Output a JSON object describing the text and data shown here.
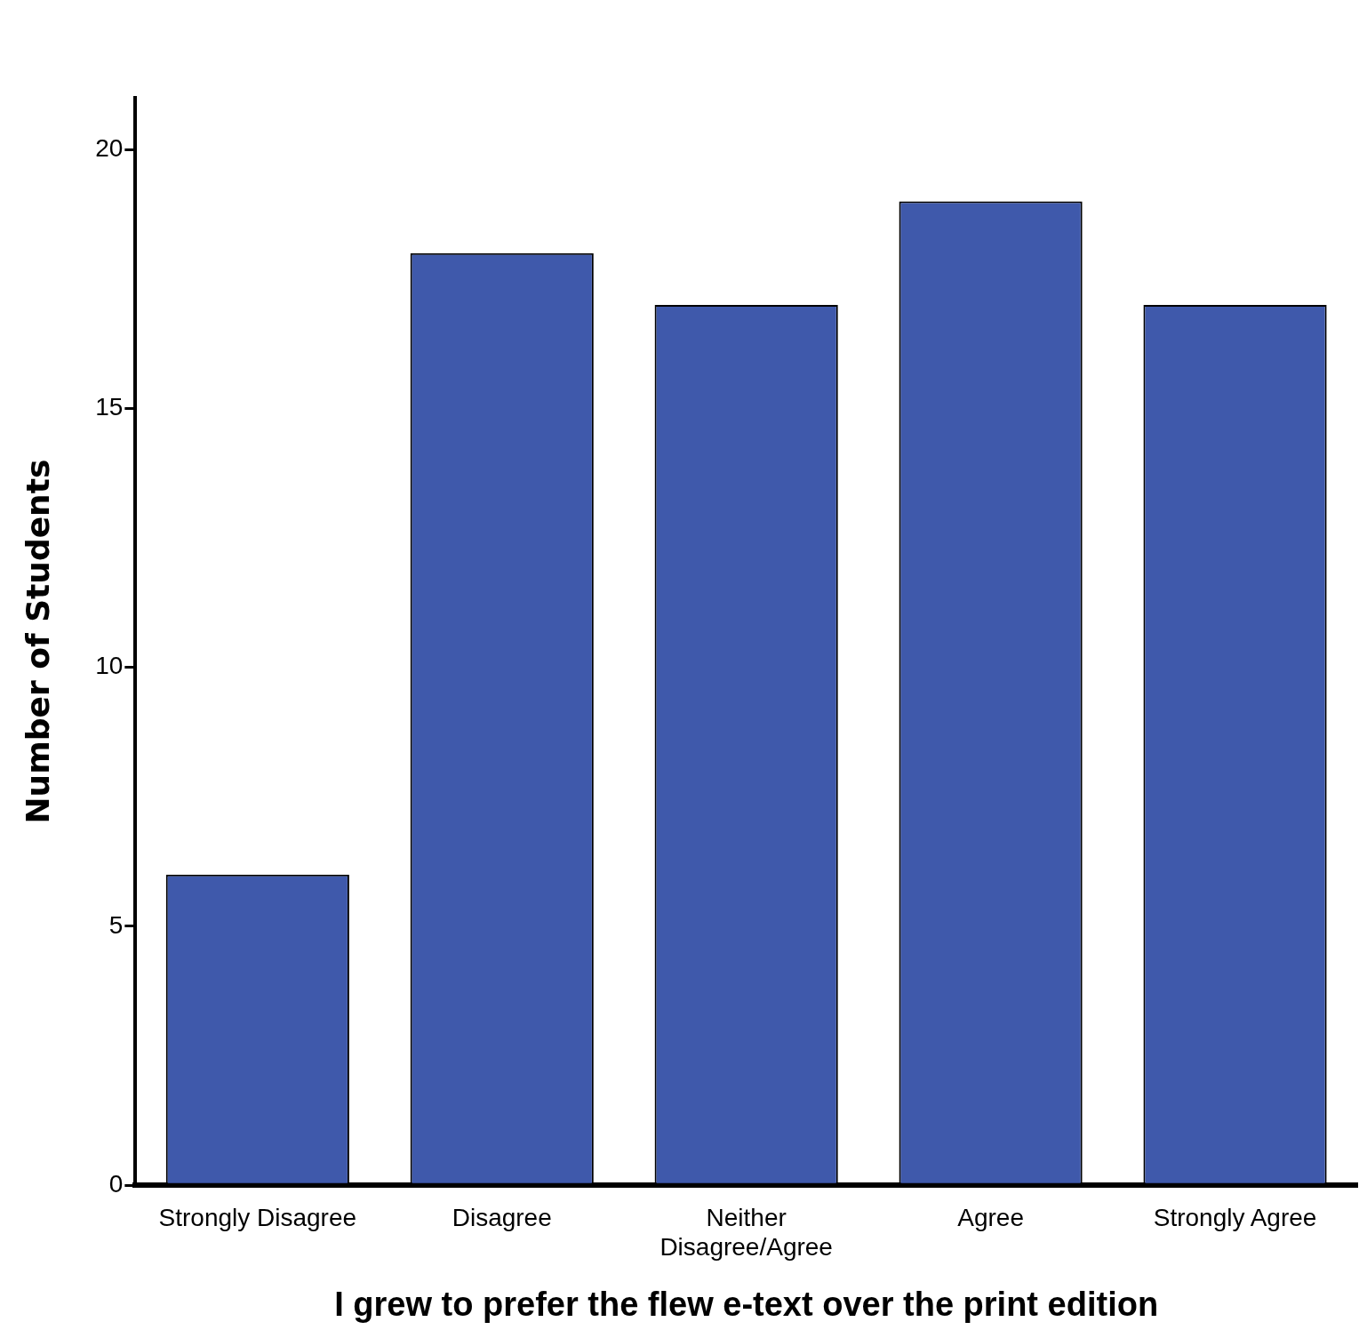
{
  "chart_data": {
    "type": "bar",
    "xlabel": "I grew to prefer the flew e-text over the print edition",
    "ylabel": "Number of Students",
    "categories": [
      "Strongly Disagree",
      "Disagree",
      "Neither Disagree/Agree",
      "Agree",
      "Strongly Agree"
    ],
    "values": [
      6,
      18,
      17,
      19,
      17
    ],
    "color": "#3f59ab",
    "ylim": [
      0,
      21
    ],
    "yticks": [
      0,
      5,
      10,
      15,
      20
    ],
    "grid": false,
    "legend": false
  }
}
